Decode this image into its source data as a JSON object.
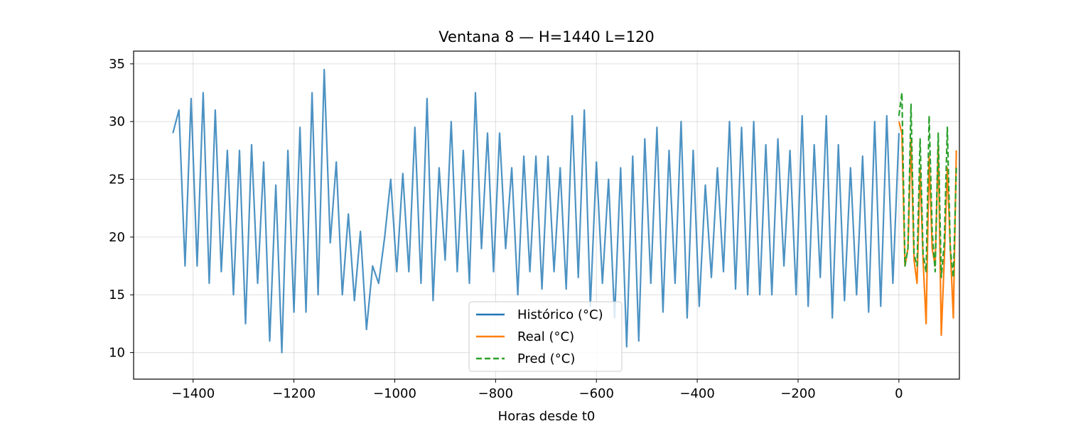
{
  "chart_data": {
    "type": "line",
    "title": "Ventana 8 — H=1440  L=120",
    "xlabel": "Horas desde t0",
    "ylabel": "",
    "xlim": [
      -1518,
      120
    ],
    "ylim": [
      7.7,
      36.1
    ],
    "xticks": [
      -1400,
      -1200,
      -1000,
      -800,
      -600,
      -400,
      -200,
      0
    ],
    "xtick_labels": [
      "−1400",
      "−1200",
      "−1000",
      "−800",
      "−600",
      "−400",
      "−200",
      "0"
    ],
    "yticks": [
      10,
      15,
      20,
      25,
      30,
      35
    ],
    "ytick_labels": [
      "10",
      "15",
      "20",
      "25",
      "30",
      "35"
    ],
    "grid": true,
    "legend_position": "bottom-center",
    "series": [
      {
        "name": "Histórico (°C)",
        "color": "#1f77b4",
        "style": "solid",
        "x_start": -1440,
        "x_step": 12,
        "values": [
          29,
          31,
          17.5,
          32,
          17.5,
          32.5,
          16,
          31,
          17,
          27.5,
          15,
          27.5,
          12.5,
          28,
          16,
          26.5,
          11,
          24.5,
          10,
          27.5,
          13.5,
          29.5,
          13.5,
          32.5,
          15,
          34.5,
          19.5,
          26.5,
          15,
          22,
          14.5,
          20.5,
          12,
          17.5,
          16,
          20,
          25,
          17,
          25.5,
          17,
          29.5,
          16,
          32,
          14.5,
          26,
          18,
          30,
          17,
          27.5,
          16,
          32.5,
          19,
          29,
          17,
          29,
          19,
          26,
          15,
          27,
          17,
          27,
          15.5,
          27,
          17,
          26,
          15.5,
          30.5,
          16.5,
          31,
          14,
          26.5,
          16,
          25,
          13,
          26,
          10.5,
          27,
          11,
          28.5,
          16,
          29.5,
          13.5,
          27.5,
          16,
          30,
          13,
          27.5,
          14,
          24.5,
          16.5,
          26,
          17,
          30,
          15.5,
          29.5,
          15,
          30,
          15,
          28,
          15,
          28.5,
          17.5,
          27.5,
          15,
          30.5,
          14,
          28,
          16.5,
          30.5,
          13,
          28,
          14.5,
          26,
          15,
          27,
          13.5,
          30,
          14,
          30.5,
          16,
          29
        ]
      },
      {
        "name": "Real (°C)",
        "color": "#ff7f0e",
        "style": "solid",
        "x_start": 0,
        "x_step": 6,
        "values": [
          30,
          29,
          17.5,
          19,
          28.5,
          18,
          16,
          26,
          18,
          12.5,
          27,
          19,
          17.5,
          28,
          11.5,
          18,
          26,
          19,
          13,
          27.5
        ]
      },
      {
        "name": "Pred (°C)",
        "color": "#2ca02c",
        "style": "dashed",
        "x_start": 0,
        "x_step": 6,
        "values": [
          30.5,
          32.5,
          17.5,
          19,
          31.5,
          18.5,
          17.5,
          28.5,
          18.5,
          17,
          30.5,
          20.5,
          17,
          29,
          16.5,
          19.5,
          29.5,
          19,
          16.5,
          26
        ]
      }
    ]
  }
}
